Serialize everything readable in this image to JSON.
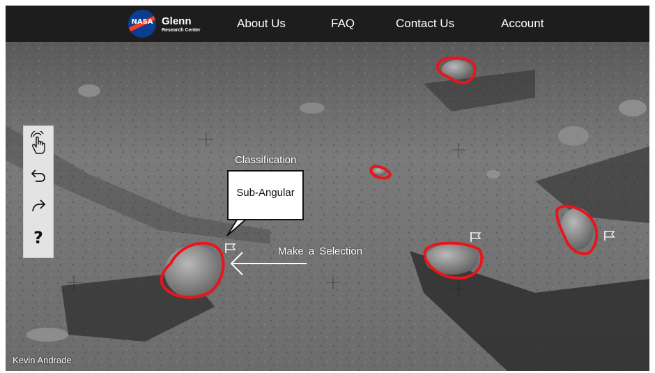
{
  "header": {
    "logo_text": "NASA",
    "brand_title": "Glenn",
    "brand_subtitle": "Research Center",
    "nav": [
      "About Us",
      "FAQ",
      "Contact Us",
      "Account"
    ]
  },
  "toolbar": {
    "tools": [
      "tap-hand-icon",
      "undo-icon",
      "redo-icon",
      "help-icon"
    ],
    "help_label": "?"
  },
  "annotation": {
    "heading": "Classification",
    "selected_class": "Sub-Angular",
    "instruction": "Make a Selection"
  },
  "credit": "Kevin Andrade",
  "colors": {
    "header_bg": "#1d1d1d",
    "selection_stroke": "#e8151b",
    "nasa_blue": "#0b3d91",
    "nasa_red": "#fc3d21",
    "toolbar_bg": "#e3e3e3"
  },
  "rocks": [
    "rock-selection-1",
    "rock-selection-2",
    "rock-selection-3",
    "rock-selection-4",
    "rock-selection-5"
  ]
}
